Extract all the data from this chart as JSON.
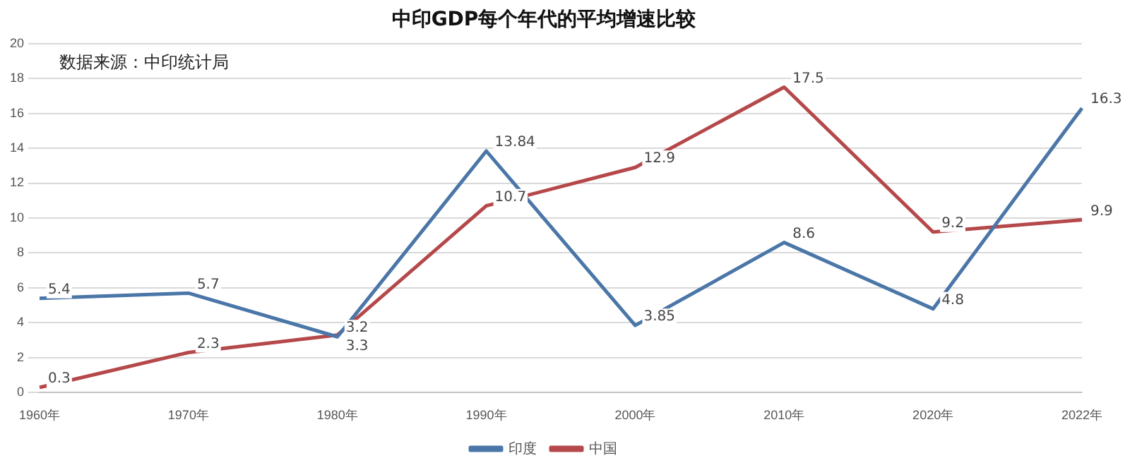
{
  "chart_data": {
    "type": "line",
    "title": "中印GDP每个年代的平均增速比较",
    "annotations": [
      "数据来源：中印统计局"
    ],
    "categories": [
      "1960年",
      "1970年",
      "1980年",
      "1990年",
      "2000年",
      "2010年",
      "2020年",
      "2022年"
    ],
    "series": [
      {
        "name": "印度",
        "color": "#4a76a8",
        "values": [
          5.4,
          5.7,
          3.2,
          13.84,
          3.85,
          8.6,
          4.8,
          16.3
        ]
      },
      {
        "name": "中国",
        "color": "#b5484a",
        "values": [
          0.3,
          2.3,
          3.3,
          10.7,
          12.9,
          17.5,
          9.2,
          9.9
        ]
      }
    ],
    "ylim": [
      0,
      20
    ],
    "yticks": [
      0,
      2,
      4,
      6,
      8,
      10,
      12,
      14,
      16,
      18,
      20
    ],
    "grid": "y",
    "legend": "bottom",
    "marker": "none",
    "line_style": "solid",
    "data_labels": true
  }
}
